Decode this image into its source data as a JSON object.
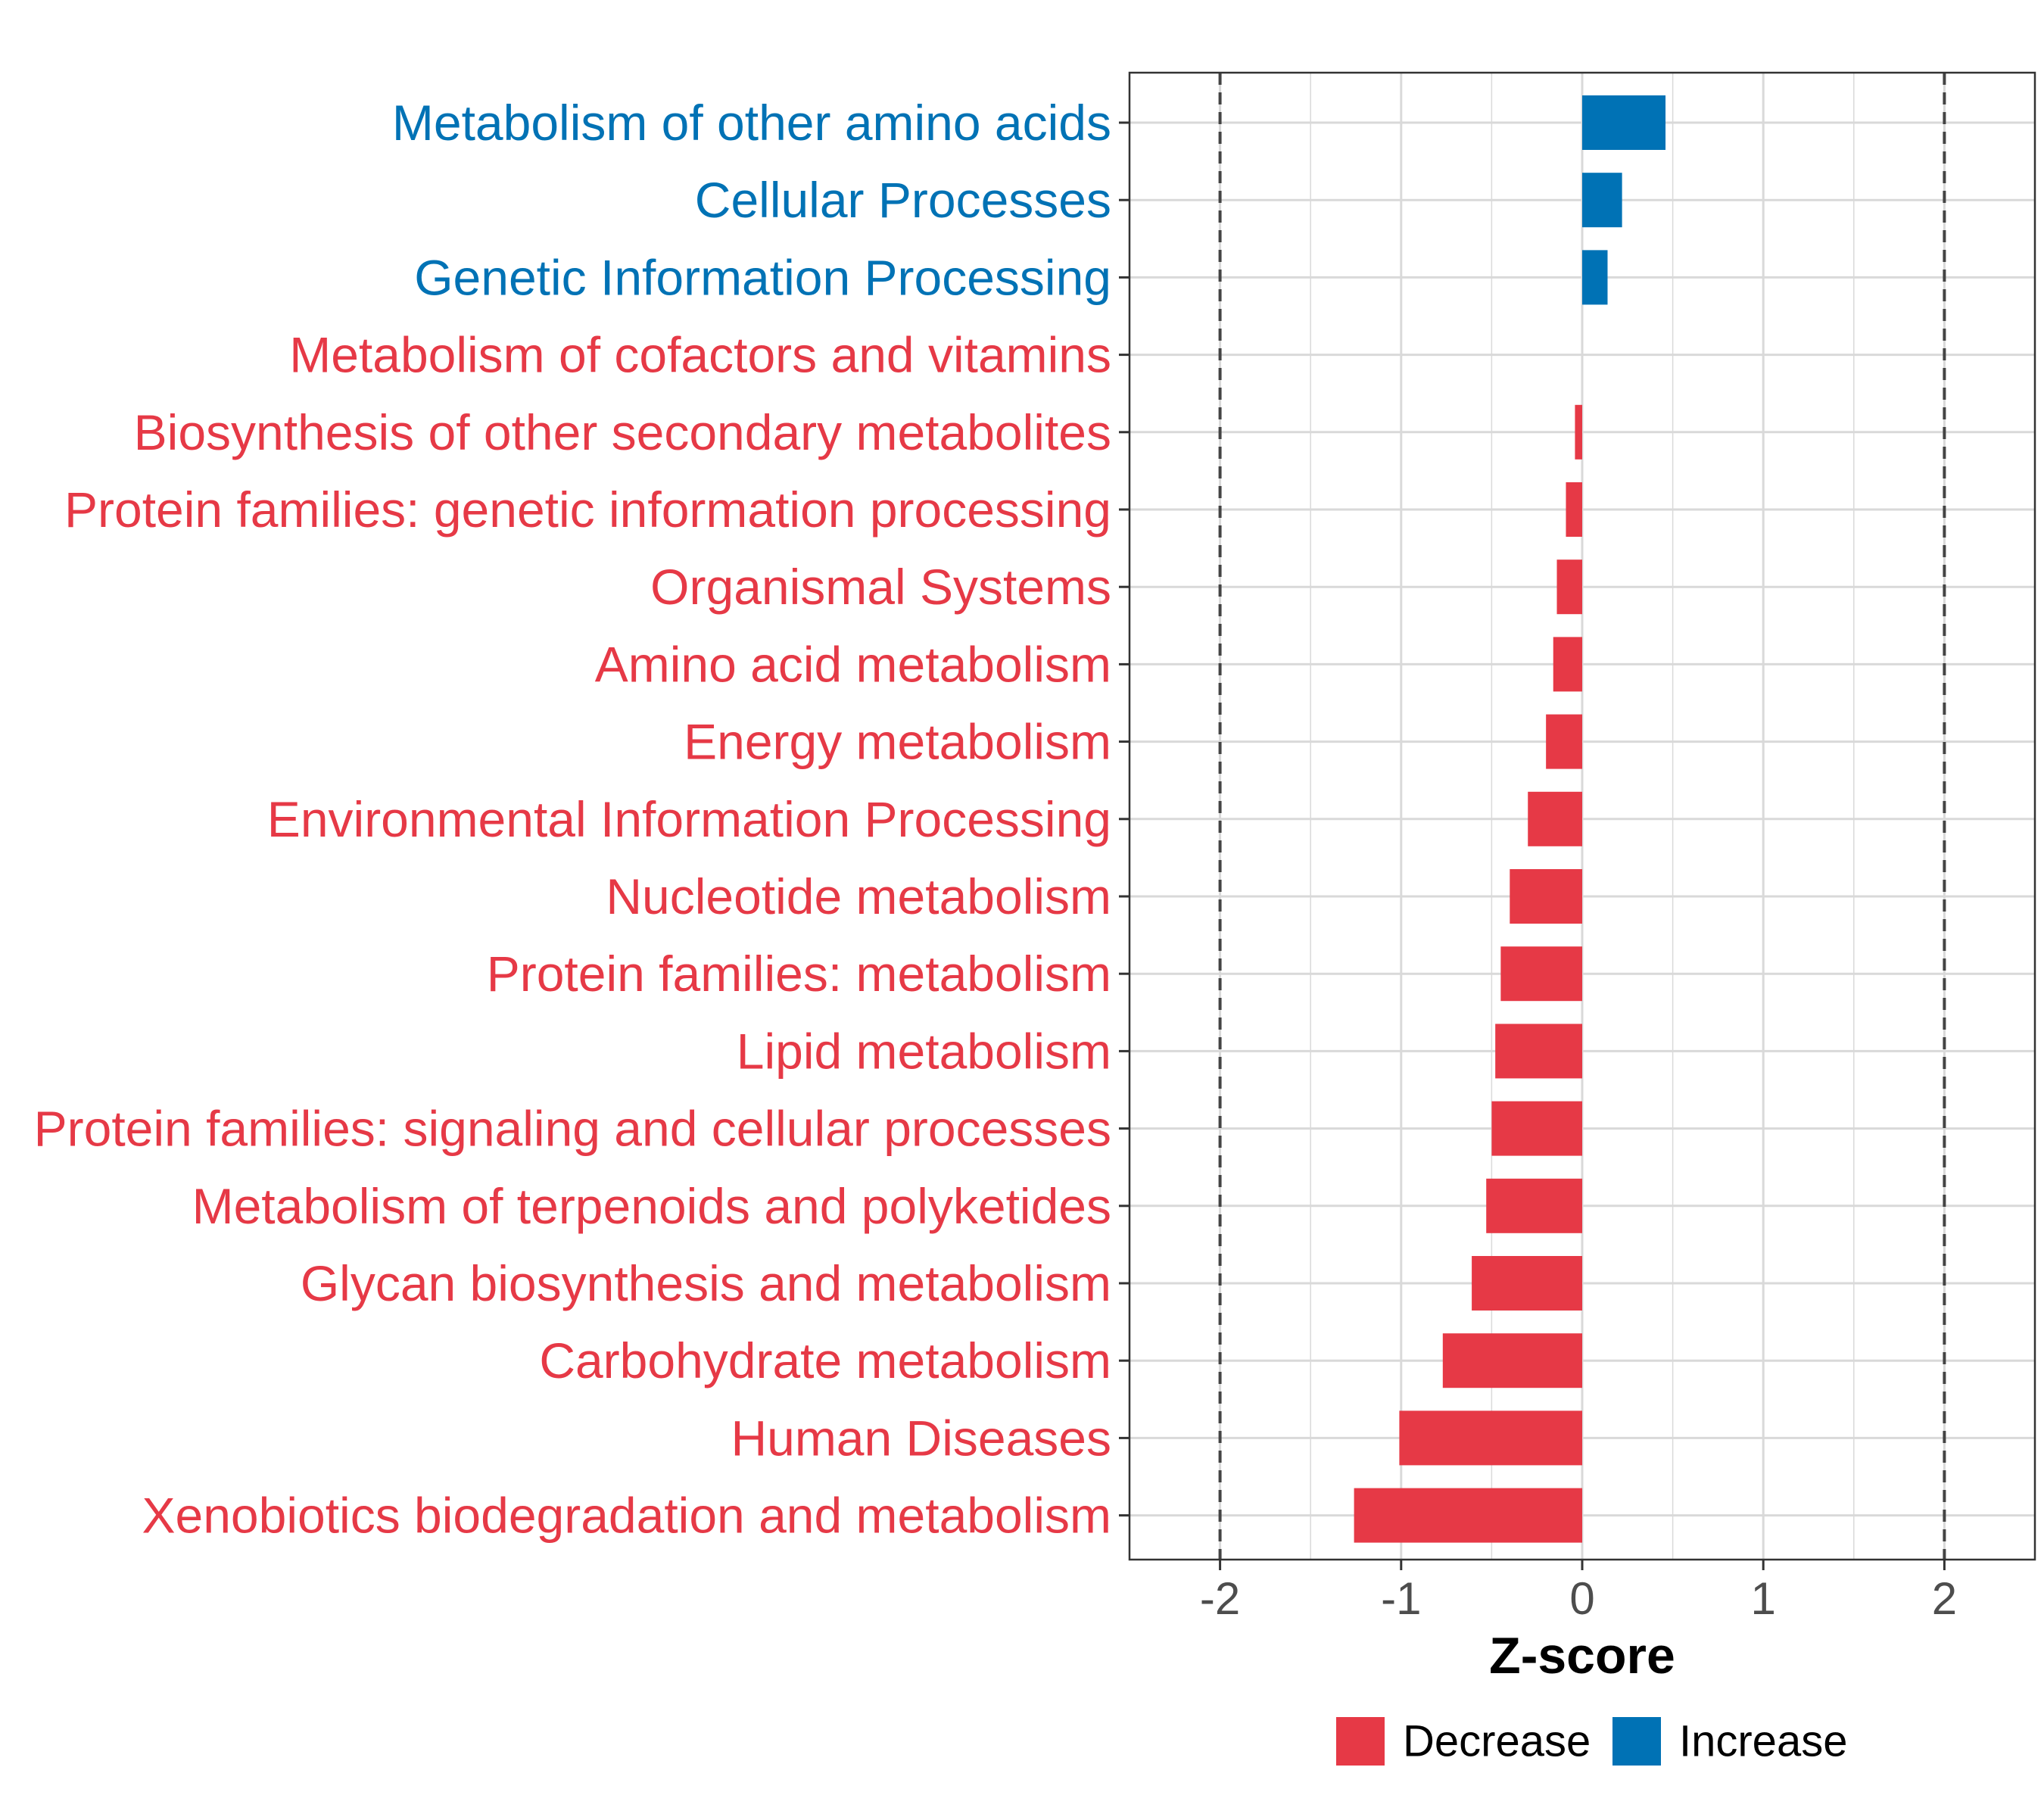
{
  "chart_data": {
    "type": "bar",
    "orientation": "horizontal",
    "xlabel": "Z-score",
    "xlim": [
      -2.5,
      2.5
    ],
    "xticks": [
      -2,
      -1,
      0,
      1,
      2
    ],
    "xtick_labels": [
      "-2",
      "-1",
      "0",
      "1",
      "2"
    ],
    "reference_lines": [
      -2,
      2
    ],
    "grid": true,
    "legend_position": "bottom",
    "categories": [
      "Metabolism of other amino acids",
      "Cellular Processes",
      "Genetic Information Processing",
      "Metabolism of cofactors and vitamins",
      "Biosynthesis of other secondary metabolites",
      "Protein families: genetic information processing",
      "Organismal Systems",
      "Amino acid metabolism",
      "Energy metabolism",
      "Environmental Information Processing",
      "Nucleotide metabolism",
      "Protein families: metabolism",
      "Lipid metabolism",
      "Protein families: signaling and cellular processes",
      "Metabolism of terpenoids and polyketides",
      "Glycan biosynthesis and metabolism",
      "Carbohydrate metabolism",
      "Human Diseases",
      "Xenobiotics biodegradation and metabolism"
    ],
    "values": [
      0.46,
      0.22,
      0.14,
      0.0,
      -0.04,
      -0.09,
      -0.14,
      -0.16,
      -0.2,
      -0.3,
      -0.4,
      -0.45,
      -0.48,
      -0.5,
      -0.53,
      -0.61,
      -0.77,
      -1.01,
      -1.26
    ],
    "groups": [
      "Increase",
      "Increase",
      "Increase",
      "Decrease",
      "Decrease",
      "Decrease",
      "Decrease",
      "Decrease",
      "Decrease",
      "Decrease",
      "Decrease",
      "Decrease",
      "Decrease",
      "Decrease",
      "Decrease",
      "Decrease",
      "Decrease",
      "Decrease",
      "Decrease"
    ],
    "legend": [
      {
        "name": "Decrease",
        "color": "#E63946"
      },
      {
        "name": "Increase",
        "color": "#0072B5"
      }
    ]
  }
}
